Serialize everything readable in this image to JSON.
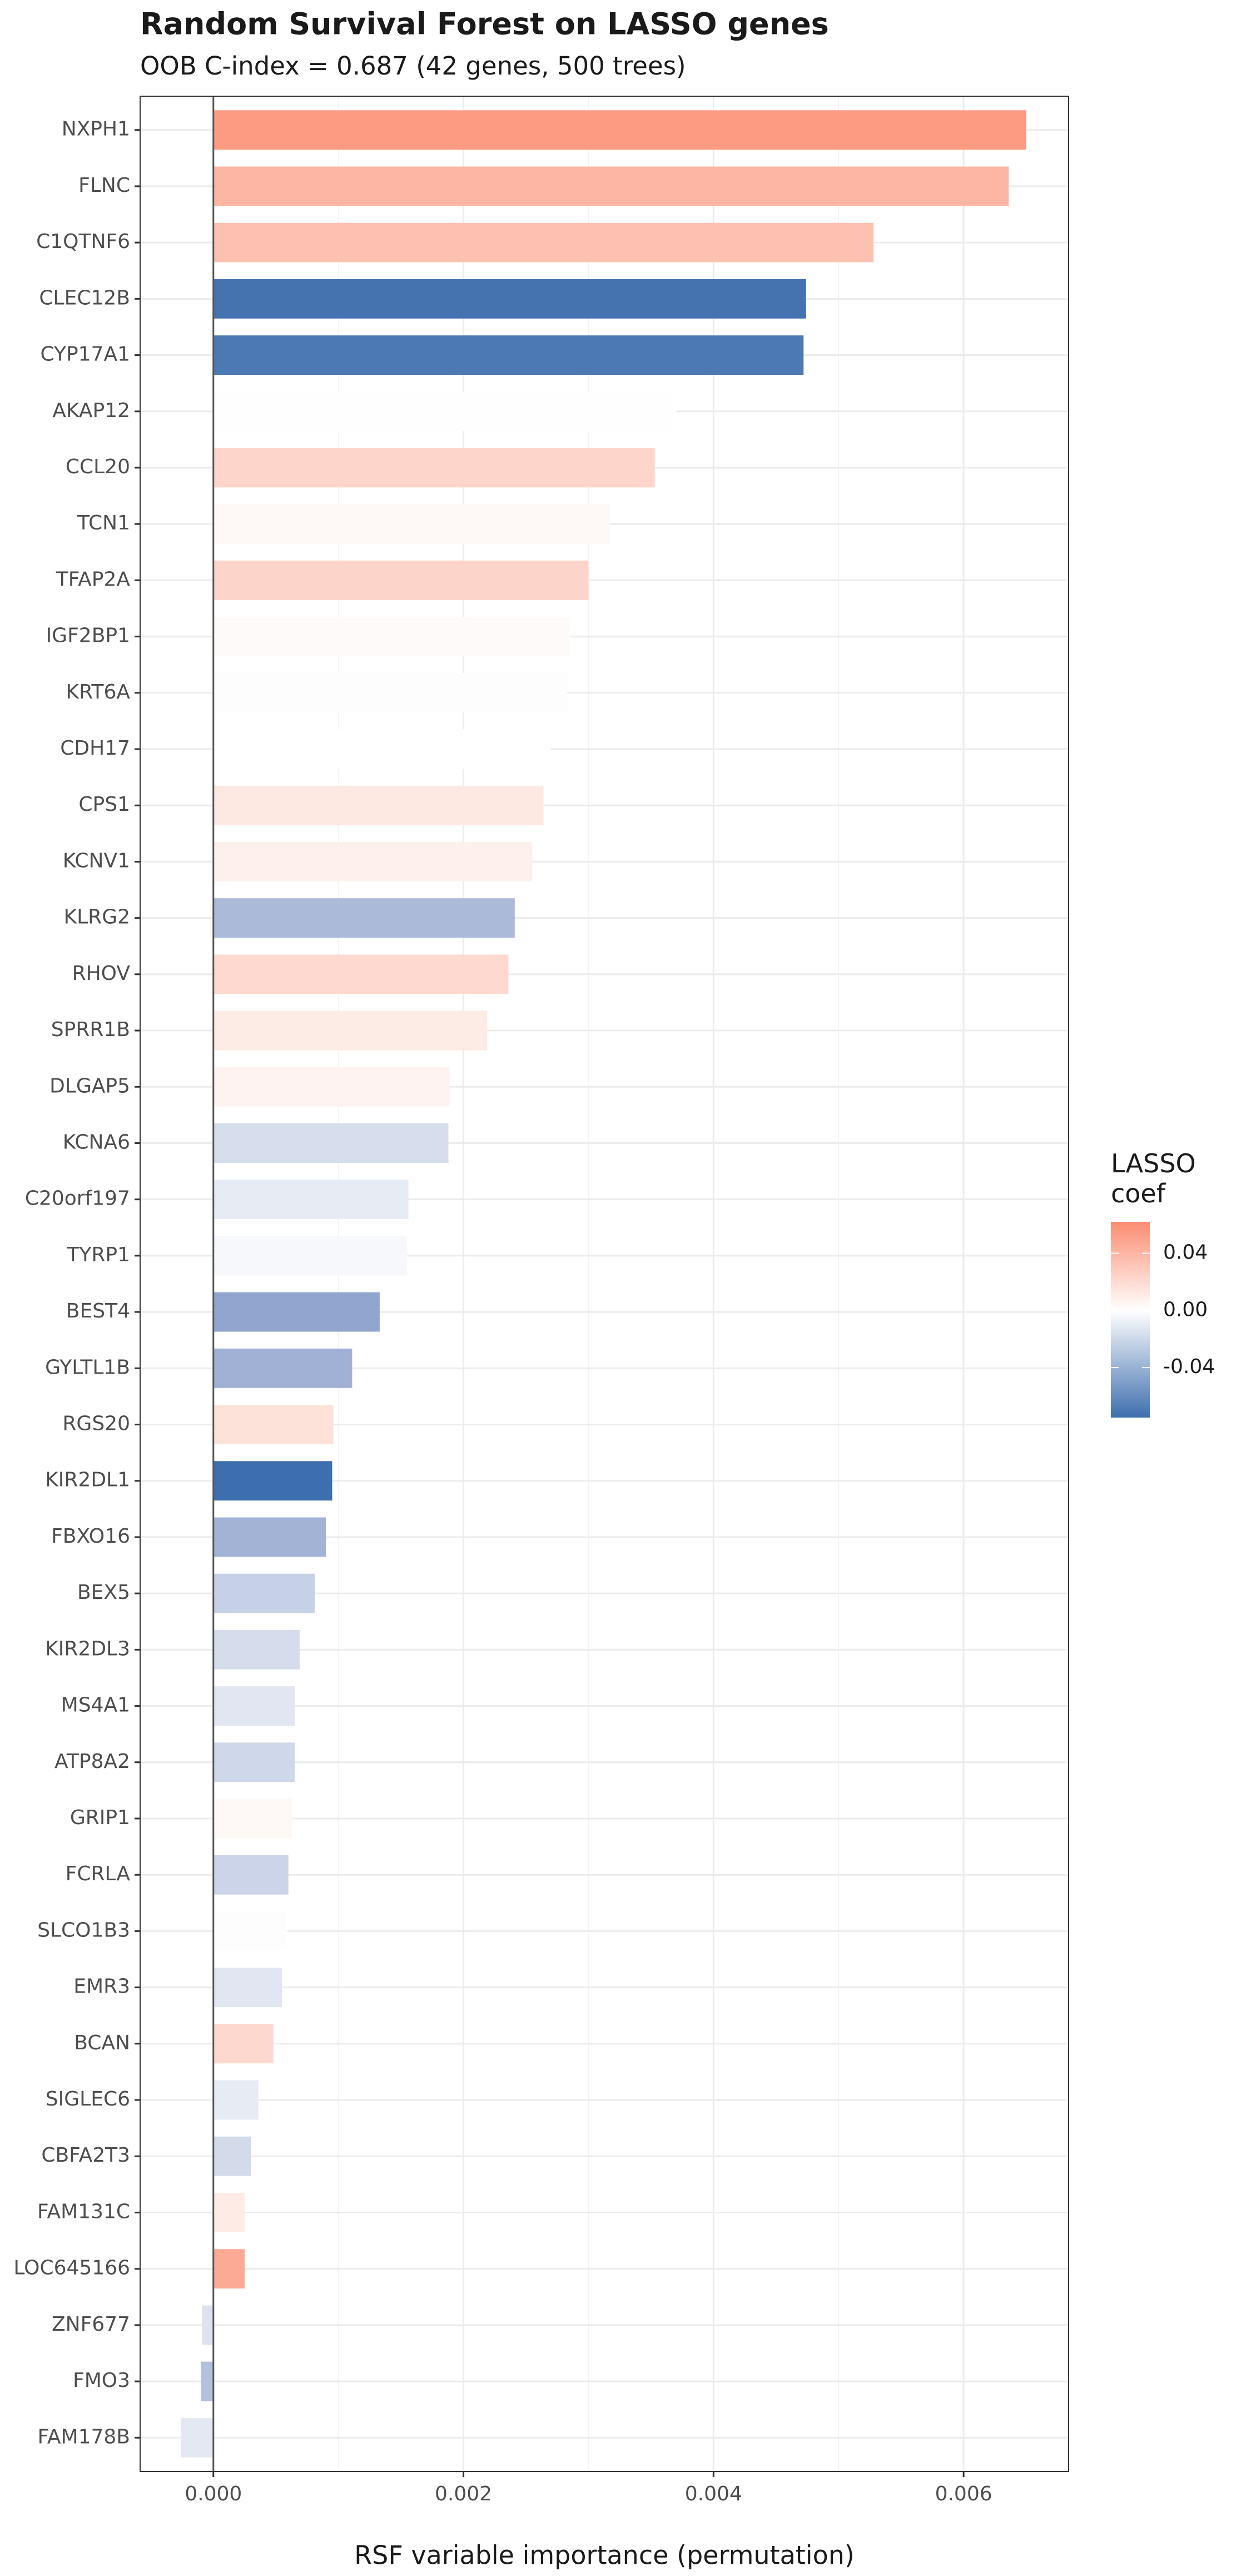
{
  "chart_data": {
    "type": "bar",
    "orientation": "horizontal",
    "title": "Random Survival Forest on LASSO genes",
    "subtitle": "OOB C-index = 0.687  (42 genes, 500 trees)",
    "x_label": "RSF variable importance (permutation)",
    "categories": [
      "NXPH1",
      "FLNC",
      "C1QTNF6",
      "CLEC12B",
      "CYP17A1",
      "AKAP12",
      "CCL20",
      "TCN1",
      "TFAP2A",
      "IGF2BP1",
      "KRT6A",
      "CDH17",
      "CPS1",
      "KCNV1",
      "KLRG2",
      "RHOV",
      "SPRR1B",
      "DLGAP5",
      "KCNA6",
      "C20orf197",
      "TYRP1",
      "BEST4",
      "GYLTL1B",
      "RGS20",
      "KIR2DL1",
      "FBXO16",
      "BEX5",
      "KIR2DL3",
      "MS4A1",
      "ATP8A2",
      "GRIP1",
      "FCRLA",
      "SLCO1B3",
      "EMR3",
      "BCAN",
      "SIGLEC6",
      "CBFA2T3",
      "FAM131C",
      "LOC645166",
      "ZNF677",
      "FMO3",
      "FAM178B"
    ],
    "values": [
      0.0065,
      0.00636,
      0.00528,
      0.00474,
      0.00472,
      0.0037,
      0.00353,
      0.00317,
      0.003,
      0.00285,
      0.00283,
      0.0027,
      0.00264,
      0.00255,
      0.00241,
      0.00236,
      0.00219,
      0.00189,
      0.00188,
      0.00156,
      0.00155,
      0.00133,
      0.00111,
      0.00096,
      0.00095,
      0.0009,
      0.00081,
      0.00069,
      0.00065,
      0.00065,
      0.00063,
      0.0006,
      0.00059,
      0.00055,
      0.00048,
      0.00036,
      0.0003,
      0.00025,
      0.00025,
      -9e-05,
      -0.0001,
      -0.00026
    ],
    "colors": [
      "#fc9a82",
      "#fdb6a3",
      "#fdc1b1",
      "#4573b0",
      "#4c78b3",
      "#fefefe",
      "#fdd5cb",
      "#fef9f7",
      "#fdd4ca",
      "#fefafa",
      "#fdfdfd",
      "#ffffff",
      "#fde8e2",
      "#fef0ec",
      "#abbad9",
      "#fdd9d0",
      "#fdebe6",
      "#fef3f1",
      "#d6ddec",
      "#e7ebf4",
      "#f7f8fb",
      "#91a5cf",
      "#a0b1d5",
      "#fde2da",
      "#3d6eae",
      "#a3b3d6",
      "#c6d0e6",
      "#d6dcec",
      "#e1e6f2",
      "#cfd7ea",
      "#fef8f6",
      "#cbd4e8",
      "#fdfdfe",
      "#e1e6f2",
      "#fdd8ce",
      "#e7ebf4",
      "#d3dbeb",
      "#feebe6",
      "#fca996",
      "#dde2f0",
      "#b3c1dd",
      "#e4e8f3"
    ],
    "xlim": [
      -0.000586,
      0.00684
    ],
    "xticks": [
      {
        "value": 0,
        "label": "0.000"
      },
      {
        "value": 0.002,
        "label": "0.002"
      },
      {
        "value": 0.004,
        "label": "0.004"
      },
      {
        "value": 0.006,
        "label": "0.006"
      }
    ],
    "grid": true,
    "legend": {
      "title": "LASSO\ncoef",
      "lim": [
        -0.075,
        0.062
      ],
      "colors": [
        "#3f6fae",
        "#ffffff",
        "#fc8d72"
      ],
      "ticks": [
        0.04,
        {
          "value": 0,
          "label": "0.00"
        },
        -0.04
      ]
    }
  }
}
